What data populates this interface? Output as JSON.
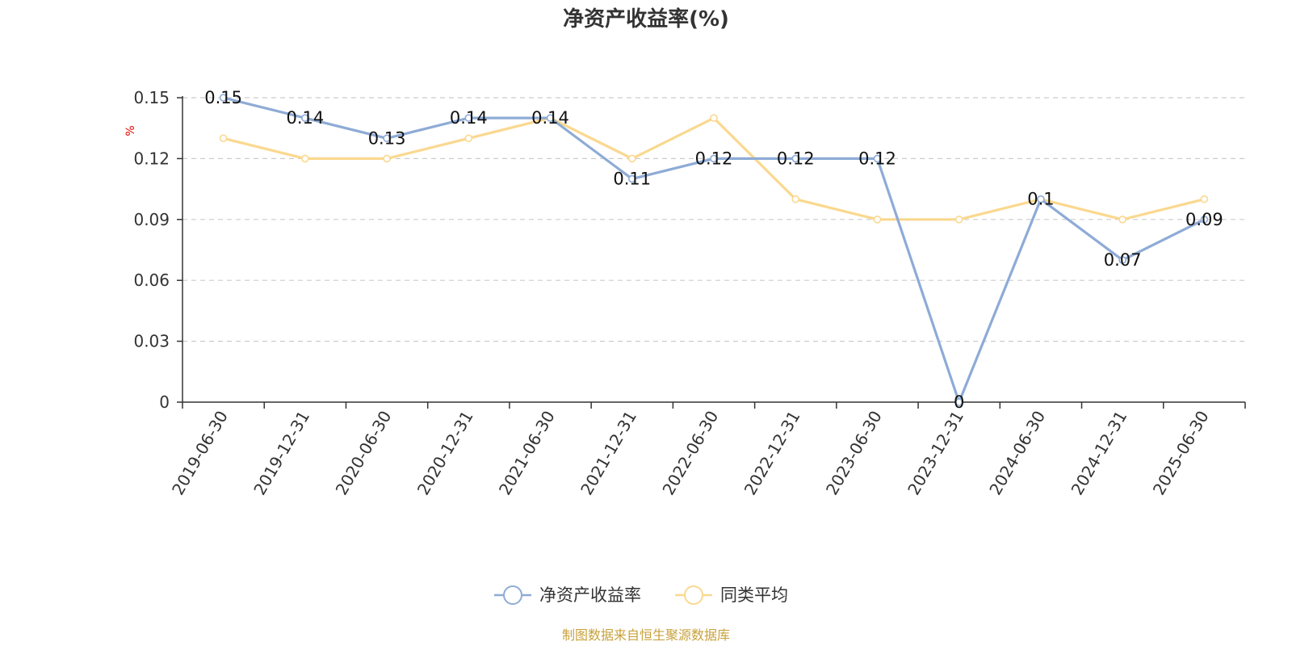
{
  "chart_data": {
    "type": "line",
    "title": "净资产收益率(%)",
    "ylabel": "%",
    "ylim": [
      0,
      0.15
    ],
    "yticks": [
      0,
      0.03,
      0.06,
      0.09,
      0.12,
      0.15
    ],
    "ytick_labels": [
      "0",
      "0.03",
      "0.06",
      "0.09",
      "0.12",
      "0.15"
    ],
    "grid": true,
    "legend_position": "bottom-center",
    "categories": [
      "2019-06-30",
      "2019-12-31",
      "2020-06-30",
      "2020-12-31",
      "2021-06-30",
      "2021-12-31",
      "2022-06-30",
      "2022-12-31",
      "2023-06-30",
      "2023-12-31",
      "2024-06-30",
      "2024-12-31",
      "2025-06-30"
    ],
    "series": [
      {
        "name": "净资产收益率",
        "color": "#8eabd6",
        "values": [
          0.15,
          0.14,
          0.13,
          0.14,
          0.14,
          0.11,
          0.12,
          0.12,
          0.12,
          0,
          0.1,
          0.07,
          0.09
        ],
        "labels": [
          "0.15",
          "0.14",
          "0.13",
          "0.14",
          "0.14",
          "0.11",
          "0.12",
          "0.12",
          "0.12",
          "0",
          "0.1",
          "0.07",
          "0.09"
        ]
      },
      {
        "name": "同类平均",
        "color": "#fad88f",
        "values": [
          0.13,
          0.12,
          0.12,
          0.13,
          0.14,
          0.12,
          0.14,
          0.1,
          0.09,
          0.09,
          0.1,
          0.09,
          0.1
        ]
      }
    ],
    "source": "制图数据来自恒生聚源数据库"
  }
}
